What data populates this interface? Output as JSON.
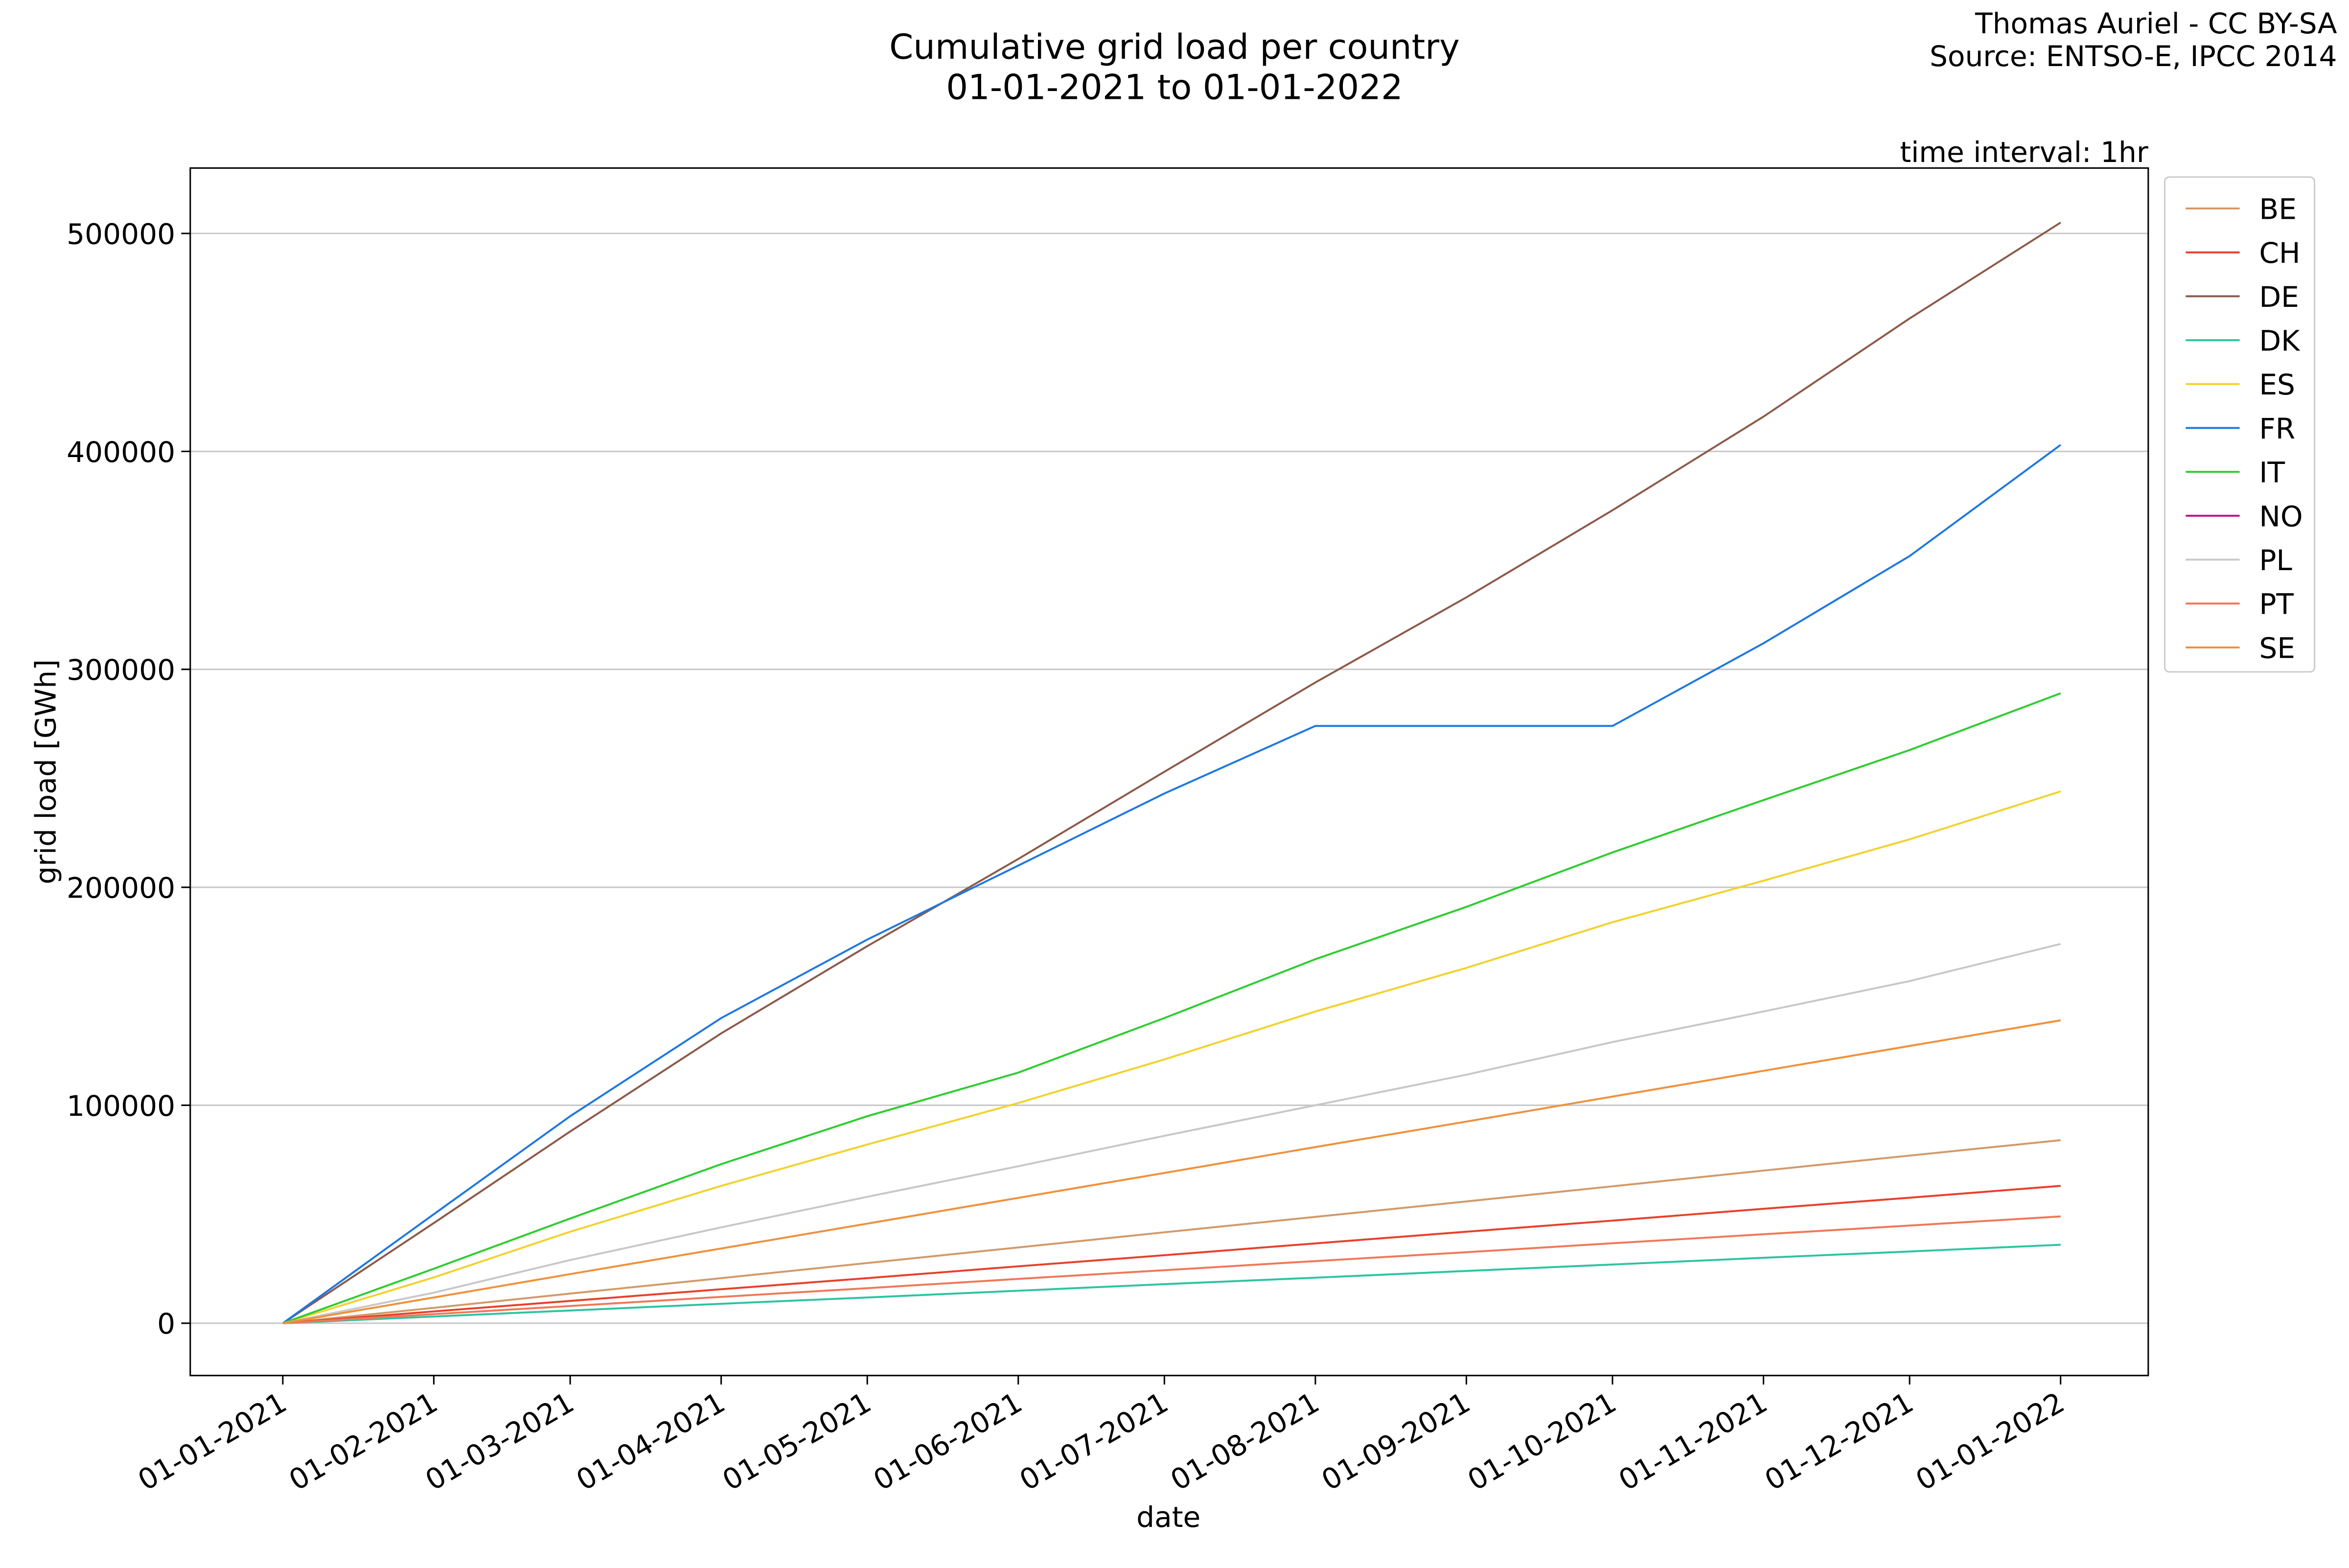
{
  "chart_data": {
    "type": "line",
    "title": [
      "Cumulative grid load per country",
      "01-01-2021 to 01-01-2022"
    ],
    "annotations": [
      "Thomas Auriel - CC BY-SA",
      "Source: ENTSO-E, IPCC 2014",
      "time interval: 1hr"
    ],
    "xlabel": "date",
    "ylabel": "grid load [GWh]",
    "x": [
      "01-01-2021",
      "01-02-2021",
      "01-03-2021",
      "01-04-2021",
      "01-05-2021",
      "01-06-2021",
      "01-07-2021",
      "01-08-2021",
      "01-09-2021",
      "01-10-2021",
      "01-11-2021",
      "01-12-2021",
      "01-01-2022"
    ],
    "xlim": [
      "13-12-2020",
      "19-01-2022"
    ],
    "ylim": [
      -24000,
      530000
    ],
    "yticks": [
      0,
      100000,
      200000,
      300000,
      400000,
      500000
    ],
    "grid": true,
    "legend": "upper right",
    "series": [
      {
        "name": "BE",
        "color": "#d29a6a",
        "values": [
          0,
          7100,
          13600,
          20700,
          27600,
          34800,
          41700,
          48800,
          55900,
          62800,
          70000,
          76900,
          84000
        ]
      },
      {
        "name": "CH",
        "color": "#e8402a",
        "values": [
          0,
          5400,
          10200,
          15600,
          20700,
          26100,
          31200,
          36600,
          42000,
          47100,
          52500,
          57600,
          63000
        ]
      },
      {
        "name": "DE",
        "color": "#8c5a4a",
        "values": [
          0,
          46000,
          88000,
          133000,
          173000,
          213000,
          253000,
          294000,
          333000,
          373000,
          416000,
          461000,
          505000
        ]
      },
      {
        "name": "DK",
        "color": "#2ec4a0",
        "values": [
          0,
          3100,
          5800,
          8900,
          11800,
          14900,
          17900,
          20900,
          24000,
          26900,
          30000,
          32900,
          36000
        ]
      },
      {
        "name": "ES",
        "color": "#f2d22e",
        "values": [
          0,
          21000,
          42000,
          63000,
          82000,
          101000,
          121000,
          143000,
          163000,
          184000,
          203000,
          222000,
          244000
        ]
      },
      {
        "name": "FR",
        "color": "#1f78e0",
        "values": [
          0,
          50000,
          95000,
          140000,
          176000,
          210000,
          243000,
          274000,
          274000,
          274000,
          312000,
          352000,
          403000
        ]
      },
      {
        "name": "IT",
        "color": "#2ecc30",
        "values": [
          0,
          25000,
          48000,
          73000,
          95000,
          115000,
          140000,
          167000,
          191000,
          216000,
          240000,
          263000,
          289000
        ]
      },
      {
        "name": "NO",
        "color": "#c0148a",
        "values": [
          null,
          null,
          null,
          null,
          null,
          null,
          null,
          null,
          null,
          null,
          null,
          null,
          null
        ]
      },
      {
        "name": "PL",
        "color": "#c8c8c8",
        "values": [
          0,
          14000,
          29000,
          44000,
          58000,
          72000,
          86000,
          100000,
          114000,
          129000,
          143000,
          157000,
          174000
        ]
      },
      {
        "name": "PT",
        "color": "#f07858",
        "values": [
          0,
          4200,
          7900,
          12100,
          16100,
          20300,
          24300,
          28500,
          32600,
          36700,
          40800,
          44800,
          49000
        ]
      },
      {
        "name": "SE",
        "color": "#f0903c",
        "values": [
          0,
          11800,
          22500,
          34300,
          45700,
          57500,
          68900,
          80800,
          92500,
          104000,
          115800,
          127200,
          139000
        ]
      }
    ]
  }
}
